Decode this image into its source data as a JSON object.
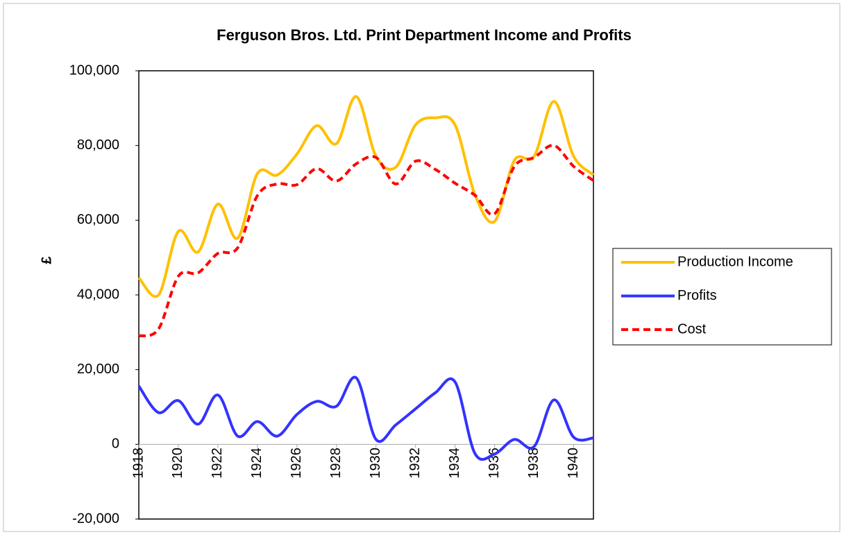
{
  "chart_data": {
    "type": "line",
    "title": "Ferguson Bros. Ltd. Print Department Income and Profits",
    "y_label": "£",
    "x": [
      1918,
      1919,
      1920,
      1921,
      1922,
      1923,
      1924,
      1925,
      1926,
      1927,
      1928,
      1929,
      1930,
      1931,
      1932,
      1933,
      1934,
      1935,
      1936,
      1937,
      1938,
      1939,
      1940,
      1941
    ],
    "xlim": [
      1918,
      1941
    ],
    "xticks": [
      1918,
      1920,
      1922,
      1924,
      1926,
      1928,
      1930,
      1932,
      1934,
      1936,
      1938,
      1940
    ],
    "ylim": [
      -20000,
      100000
    ],
    "yticks": [
      {
        "value": -20000,
        "label": "-20,000"
      },
      0,
      {
        "value": 20000,
        "label": "20,000"
      },
      {
        "value": 40000,
        "label": "40,000"
      },
      {
        "value": 60000,
        "label": "60,000"
      },
      {
        "value": 80000,
        "label": "80,000"
      },
      {
        "value": 100000,
        "label": "100,000"
      }
    ],
    "legend": "right",
    "smooth": true,
    "series": [
      {
        "name": "Production Income",
        "color": "#ffc000",
        "dashed": false,
        "values": [
          44600,
          40000,
          57000,
          51500,
          64300,
          55200,
          72500,
          72100,
          77700,
          85300,
          80500,
          93100,
          77100,
          74200,
          85500,
          87400,
          85500,
          66900,
          59700,
          76000,
          77100,
          91800,
          77100,
          72100
        ]
      },
      {
        "name": "Profits",
        "color": "#3333ff",
        "dashed": false,
        "values": [
          15600,
          8500,
          11700,
          5400,
          13200,
          2200,
          6100,
          2200,
          8000,
          11500,
          10200,
          17800,
          1300,
          5200,
          9500,
          13800,
          16700,
          -2400,
          -2600,
          1300,
          -600,
          11900,
          1900,
          1700
        ]
      },
      {
        "name": "Cost",
        "color": "#ff0000",
        "dashed": true,
        "values": [
          29000,
          30900,
          45000,
          45900,
          51100,
          52600,
          66600,
          69700,
          69500,
          73800,
          70500,
          75100,
          76800,
          69700,
          75800,
          73600,
          69900,
          66700,
          61700,
          74400,
          76800,
          80000,
          74400,
          70600
        ]
      }
    ]
  }
}
